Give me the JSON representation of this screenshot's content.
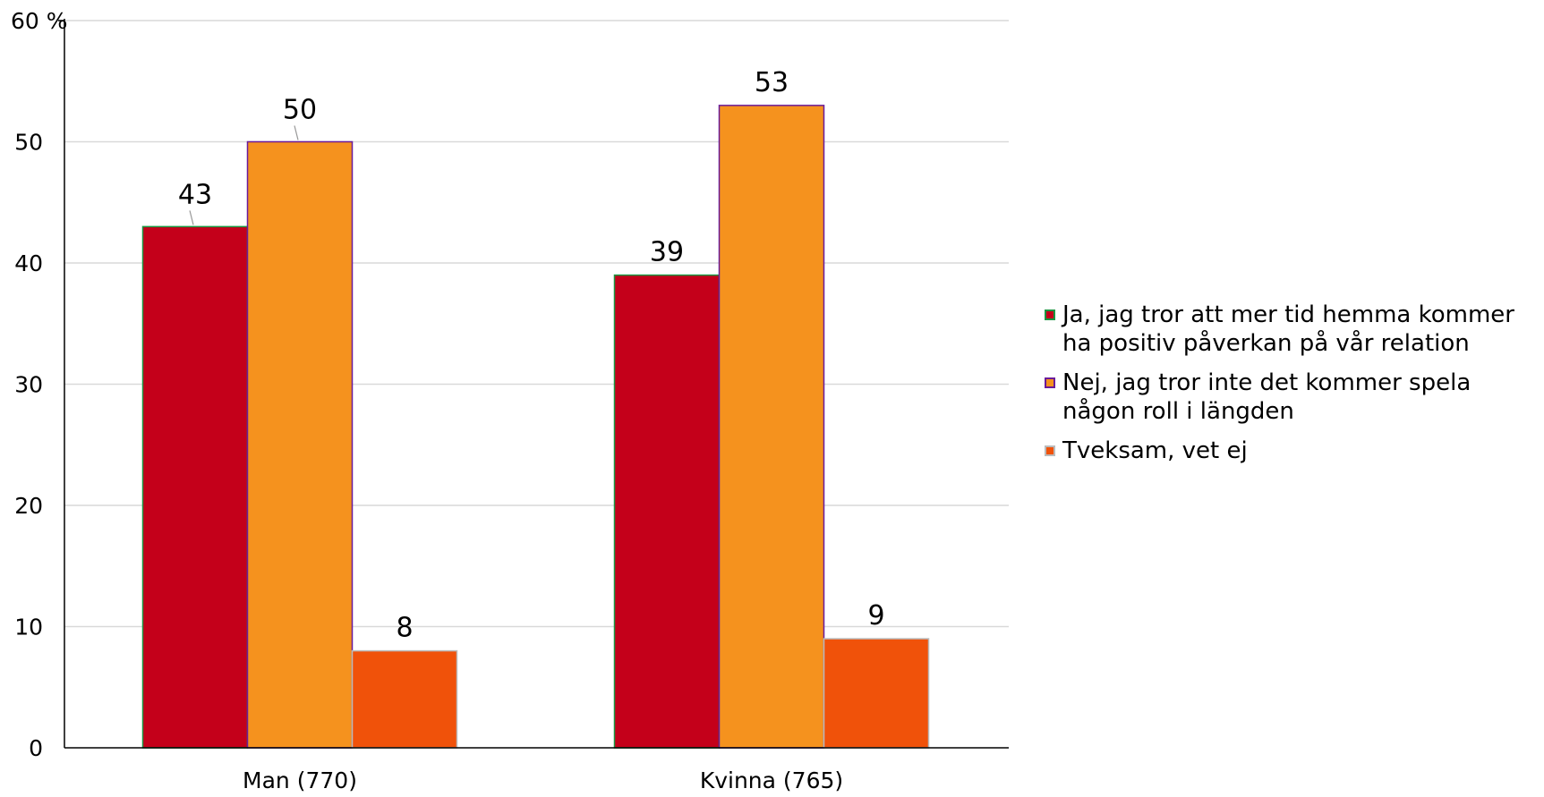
{
  "chart_data": {
    "type": "bar",
    "categories": [
      "Man (770)",
      "Kvinna (765)"
    ],
    "series": [
      {
        "name": "Ja, jag tror att mer tid hemma kommer ha positiv påverkan på vår relation",
        "values": [
          43,
          39
        ],
        "color": "#c4001a",
        "stroke": "#1a9641"
      },
      {
        "name": "Nej, jag tror inte det kommer spela någon roll i längden",
        "values": [
          50,
          53
        ],
        "color": "#f5921e",
        "stroke": "#6a1b9a"
      },
      {
        "name": "Tveksam, vet ej",
        "values": [
          8,
          9
        ],
        "color": "#f0520a",
        "stroke": "#bbbbbb"
      }
    ],
    "ylabel": "%",
    "ylim": [
      0,
      60
    ],
    "yticks": [
      0,
      10,
      20,
      30,
      40,
      50,
      60
    ],
    "grid": true,
    "legend_position": "right"
  }
}
